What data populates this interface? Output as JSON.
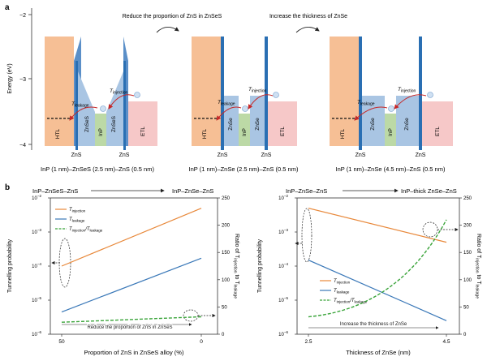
{
  "panel_a": {
    "label": "a",
    "ylabel": "Energy (eV)",
    "y_ticks": [
      "−2",
      "−3",
      "−4"
    ],
    "arrow1_text": "Reduce the proportion of ZnS in ZnSeS",
    "arrow2_text": "Increase the thickness of ZnSe",
    "diagrams": [
      {
        "title": "InP (1 nm)–ZnSeS (2.5 nm)–ZnS (0.5 nm)",
        "layers": [
          "HTL",
          "ZnSeS",
          "InP",
          "ZnSeS",
          "ETL"
        ],
        "bottom_labels": [
          "ZnS",
          "ZnS"
        ],
        "t_leakage": "leakage",
        "t_injection": "injection"
      },
      {
        "title": "InP (1 nm)–ZnSe (2.5 nm)–ZnS (0.5 nm)",
        "layers": [
          "HTL",
          "ZnSe",
          "InP",
          "ZnSe",
          "ETL"
        ],
        "bottom_labels": [
          "ZnS",
          "ZnS"
        ],
        "t_leakage": "leakage",
        "t_injection": "injection"
      },
      {
        "title": "InP (1 nm)–ZnSe (4.5 nm)–ZnS (0.5 nm)",
        "layers": [
          "HTL",
          "ZnSe",
          "InP",
          "ZnSe",
          "ETL"
        ],
        "bottom_labels": [
          "ZnS",
          "ZnS"
        ],
        "t_leakage": "leakage",
        "t_injection": "injection"
      }
    ],
    "colors": {
      "htl": "#f6bf95",
      "shell": "#a9c5e3",
      "inp": "#bcd9a6",
      "etl": "#f6c8c8",
      "zns": "#2a6fb3",
      "arrow": "#c62828"
    }
  },
  "panel_b": {
    "label": "b",
    "left": {
      "top_left_text": "InP–ZnSeS–ZnS",
      "top_right_text": "InP–ZnSe–ZnS",
      "ylabel": "Tunnelling probability",
      "y2label": "Ratio of T",
      "y2label_sub1": "injection",
      "y2label_mid": " to T",
      "y2label_sub2": "leakage",
      "xlabel": "Proportion of ZnS in ZnSeS alloy (%)",
      "x_ticks": [
        "50",
        "0"
      ],
      "y_ticks": [
        "10",
        "10",
        "10",
        "10",
        "10"
      ],
      "y_exps": [
        "−2",
        "−3",
        "−4",
        "−5",
        "−6"
      ],
      "y2_ticks": [
        "250",
        "200",
        "150",
        "100",
        "50",
        "0"
      ],
      "inner_arrow_text": "Reduce the proportion of ZnS in ZnSeS",
      "legend": [
        {
          "t": "T",
          "sub": "injection"
        },
        {
          "t": "T",
          "sub": "leakage"
        },
        {
          "t": "T",
          "sub": "injection",
          "mid": "/T",
          "sub2": "leakage"
        }
      ]
    },
    "right": {
      "top_left_text": "InP–ZnSe–ZnS",
      "top_right_text": "InP–thick ZnSe–ZnS",
      "ylabel": "Tunnelling probability",
      "y2label": "Ratio of T",
      "y2label_sub1": "injection",
      "y2label_mid": " to T",
      "y2label_sub2": "leakage",
      "xlabel": "Thickness of ZnSe (nm)",
      "x_ticks": [
        "2.5",
        "4.5"
      ],
      "y_ticks": [
        "10",
        "10",
        "10",
        "10",
        "10"
      ],
      "y_exps": [
        "−2",
        "−3",
        "−4",
        "−5",
        "−6"
      ],
      "y2_ticks": [
        "250",
        "200",
        "150",
        "100",
        "50",
        "0"
      ],
      "inner_arrow_text": "Increase the thickness of ZnSe",
      "legend": [
        {
          "t": "T",
          "sub": "injection"
        },
        {
          "t": "T",
          "sub": "leakage"
        },
        {
          "t": "T",
          "sub": "injection",
          "mid": "/T",
          "sub2": "leakage"
        }
      ]
    },
    "colors": {
      "injection": "#e8883a",
      "leakage": "#3a78b8",
      "ratio": "#3aa43a"
    }
  },
  "chart_data": [
    {
      "type": "line",
      "x": [
        50,
        0
      ],
      "xlabel": "Proportion of ZnS in ZnSeS alloy (%)",
      "ylabel": "Tunnelling probability",
      "yscale": "log",
      "ylim": [
        1e-06,
        0.01
      ],
      "y2lim": [
        0,
        250
      ],
      "series": [
        {
          "name": "T injection",
          "values": [
            0.0001,
            0.005
          ],
          "axis": "left"
        },
        {
          "name": "T leakage",
          "values": [
            4.5e-06,
            0.00017
          ],
          "axis": "left"
        },
        {
          "name": "T injection/T leakage",
          "values": [
            22,
            32
          ],
          "axis": "right"
        }
      ]
    },
    {
      "type": "line",
      "x": [
        2.5,
        4.5
      ],
      "xlabel": "Thickness of ZnSe (nm)",
      "ylabel": "Tunnelling probability",
      "yscale": "log",
      "ylim": [
        1e-06,
        0.01
      ],
      "y2lim": [
        0,
        250
      ],
      "series": [
        {
          "name": "T injection",
          "values": [
            0.005,
            0.0005
          ],
          "axis": "left"
        },
        {
          "name": "T leakage",
          "values": [
            0.00015,
            2.5e-06
          ],
          "axis": "left"
        },
        {
          "name": "T injection/T leakage",
          "values": [
            32,
            210
          ],
          "axis": "right"
        }
      ]
    }
  ]
}
